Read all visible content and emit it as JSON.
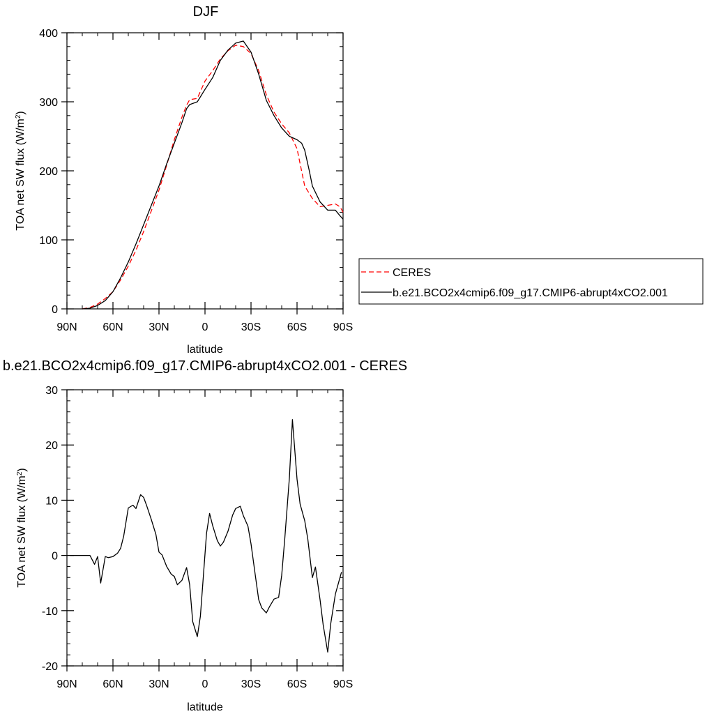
{
  "chart_data": [
    {
      "type": "line",
      "title": "DJF",
      "xlabel": "latitude",
      "ylabel_main": "TOA net SW flux (W/m",
      "ylabel_sup": "2",
      "ylabel_end": ")",
      "xlim": [
        90,
        -90
      ],
      "ylim": [
        0,
        400
      ],
      "x_ticks": [
        90,
        60,
        30,
        0,
        -30,
        -60,
        -90
      ],
      "x_tick_labels": [
        "90N",
        "60N",
        "30N",
        "0",
        "30S",
        "60S",
        "90S"
      ],
      "y_ticks": [
        0,
        100,
        200,
        300,
        400
      ],
      "y_tick_labels": [
        "0",
        "100",
        "200",
        "300",
        "400"
      ],
      "legend_position": "right",
      "series": [
        {
          "name": "CERES",
          "style": "dashed",
          "color": "#ff0000",
          "x": [
            80,
            75,
            70,
            65,
            60,
            55,
            50,
            45,
            40,
            35,
            30,
            25,
            20,
            15,
            12,
            10,
            5,
            0,
            -5,
            -10,
            -15,
            -20,
            -25,
            -30,
            -35,
            -40,
            -45,
            -50,
            -55,
            -60,
            -65,
            -70,
            -75,
            -80,
            -85,
            -88,
            -90
          ],
          "y": [
            0,
            2,
            7,
            15,
            25,
            42,
            62,
            85,
            112,
            142,
            172,
            208,
            245,
            278,
            295,
            303,
            305,
            330,
            345,
            362,
            374,
            382,
            380,
            370,
            345,
            310,
            285,
            268,
            255,
            232,
            178,
            160,
            148,
            150,
            152,
            148,
            140
          ]
        },
        {
          "name": "b.e21.BCO2x4cmip6.f09_g17.CMIP6-abrupt4xCO2.001",
          "style": "solid",
          "color": "#000000",
          "x": [
            80,
            75,
            70,
            65,
            60,
            55,
            50,
            45,
            40,
            35,
            30,
            25,
            20,
            15,
            12,
            10,
            5,
            0,
            -5,
            -10,
            -15,
            -20,
            -25,
            -30,
            -35,
            -40,
            -45,
            -50,
            -55,
            -60,
            -63,
            -65,
            -68,
            -70,
            -75,
            -80,
            -85,
            -88,
            -90
          ],
          "y": [
            0,
            1,
            5,
            12,
            25,
            45,
            68,
            94,
            122,
            150,
            178,
            210,
            240,
            270,
            290,
            296,
            300,
            318,
            335,
            360,
            375,
            385,
            388,
            372,
            340,
            302,
            280,
            262,
            250,
            245,
            240,
            230,
            200,
            178,
            155,
            143,
            143,
            135,
            130
          ]
        }
      ]
    },
    {
      "type": "line",
      "title": "b.e21.BCO2x4cmip6.f09_g17.CMIP6-abrupt4xCO2.001 - CERES",
      "xlabel": "latitude",
      "ylabel_main": "TOA net SW flux (W/m",
      "ylabel_sup": "2",
      "ylabel_end": ")",
      "xlim": [
        90,
        -90
      ],
      "ylim": [
        -20,
        30
      ],
      "x_ticks": [
        90,
        60,
        30,
        0,
        -30,
        -60,
        -90
      ],
      "x_tick_labels": [
        "90N",
        "60N",
        "30N",
        "0",
        "30S",
        "60S",
        "90S"
      ],
      "y_ticks": [
        -20,
        -10,
        0,
        10,
        20,
        30
      ],
      "y_tick_labels": [
        "-20",
        "-10",
        "0",
        "10",
        "20",
        "30"
      ],
      "series": [
        {
          "style": "solid",
          "color": "#000000",
          "x": [
            88,
            75,
            72,
            70,
            68,
            65,
            63,
            60,
            57,
            55,
            53,
            50,
            47,
            45,
            42,
            40,
            38,
            35,
            32,
            30,
            28,
            25,
            22,
            20,
            18,
            15,
            12,
            10,
            8,
            5,
            3,
            1,
            -1,
            -3,
            -5,
            -8,
            -10,
            -12,
            -15,
            -18,
            -20,
            -23,
            -25,
            -28,
            -30,
            -33,
            -35,
            -37,
            -40,
            -42,
            -45,
            -48,
            -50,
            -52,
            -55,
            -57,
            -60,
            -62,
            -65,
            -67,
            -70,
            -72,
            -75,
            -77,
            -80,
            -82,
            -85,
            -87,
            -89
          ],
          "y": [
            0,
            0,
            -1.6,
            -0.2,
            -5,
            -0.2,
            -0.4,
            -0.2,
            0.4,
            1.3,
            3.5,
            8.6,
            9.1,
            8.5,
            11,
            10.5,
            9,
            6.5,
            3.8,
            0.6,
            0.1,
            -2,
            -3.4,
            -3.8,
            -5.3,
            -4.5,
            -2.2,
            -5.3,
            -12,
            -14.7,
            -11,
            -3.5,
            4,
            7.6,
            5.4,
            2.7,
            1.7,
            2.4,
            4.4,
            7.3,
            8.5,
            8.9,
            7.2,
            5.3,
            2.1,
            -4,
            -8,
            -9.5,
            -10.4,
            -9.3,
            -7.9,
            -7.6,
            -3.6,
            3,
            14,
            24.6,
            13.8,
            9.3,
            6.3,
            3,
            -4,
            -2.1,
            -8,
            -12.5,
            -17.5,
            -12.3,
            -7,
            -5,
            -3
          ]
        }
      ]
    }
  ],
  "legend": {
    "ceres_label": "CERES",
    "model_label": "b.e21.BCO2x4cmip6.f09_g17.CMIP6-abrupt4xCO2.001"
  }
}
